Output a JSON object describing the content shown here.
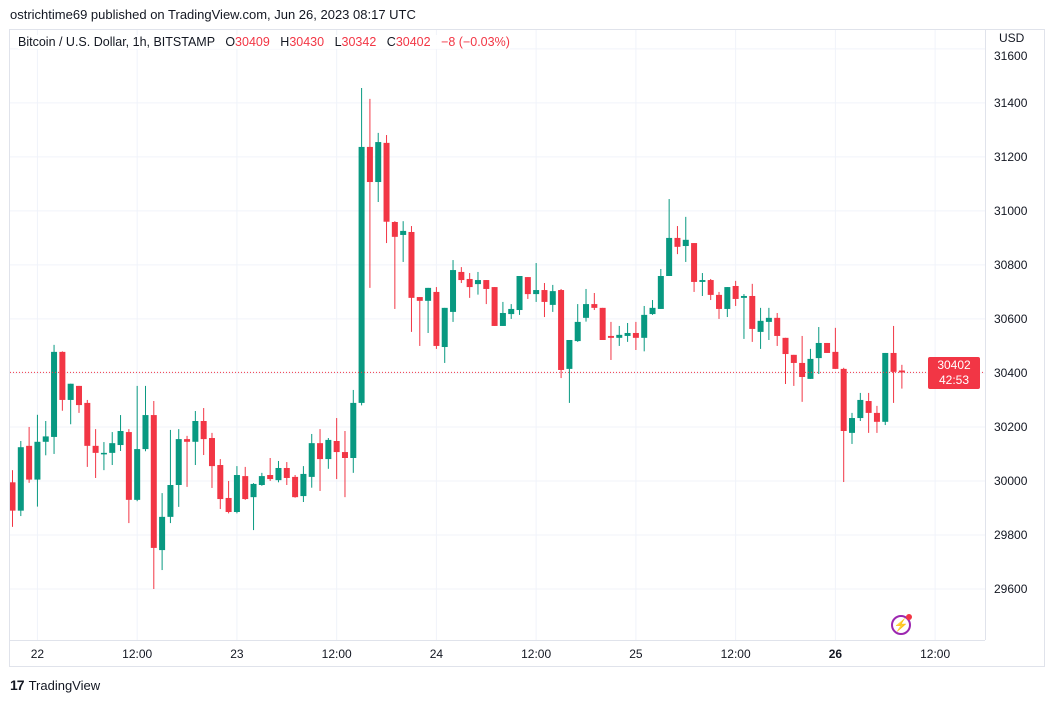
{
  "publisher_line": "ostrichtime69 published on TradingView.com, Jun 26, 2023 08:17 UTC",
  "legend": {
    "symbol": "Bitcoin / U.S. Dollar, 1h, BITSTAMP",
    "o_label": "O",
    "o": "30409",
    "h_label": "H",
    "h": "30430",
    "l_label": "L",
    "l": "30342",
    "c_label": "C",
    "c": "30402",
    "change": "−8 (−0.03%)"
  },
  "currency": "USD",
  "last_price": {
    "price": "30402",
    "countdown": "42:53"
  },
  "logo": "TradingView",
  "colors": {
    "up": "#089981",
    "down": "#F23645",
    "grid": "#f0f3fa",
    "accent": "#9c27b0"
  },
  "chart_data": {
    "type": "candlestick",
    "title": "Bitcoin / U.S. Dollar, 1h, BITSTAMP",
    "interval": "1h",
    "ylim": [
      29411,
      31670
    ],
    "yticks": [
      "29600",
      "29800",
      "30000",
      "30200",
      "30400",
      "30600",
      "30800",
      "31000",
      "31200",
      "31400",
      "31600"
    ],
    "xlim": [
      -0.3,
      117
    ],
    "xticks": [
      {
        "index": 3,
        "label": "22",
        "bold": false
      },
      {
        "index": 15,
        "label": "12:00",
        "bold": false
      },
      {
        "index": 27,
        "label": "23",
        "bold": false
      },
      {
        "index": 39,
        "label": "12:00",
        "bold": false
      },
      {
        "index": 51,
        "label": "24",
        "bold": false
      },
      {
        "index": 63,
        "label": "12:00",
        "bold": false
      },
      {
        "index": 75,
        "label": "25",
        "bold": false
      },
      {
        "index": 87,
        "label": "12:00",
        "bold": false
      },
      {
        "index": 99,
        "label": "26",
        "bold": true
      },
      {
        "index": 111,
        "label": "12:00",
        "bold": false
      }
    ],
    "last_price_line": 30402,
    "candles_ohlc": [
      [
        29995,
        30040,
        29830,
        29890
      ],
      [
        29890,
        30148,
        29870,
        30125
      ],
      [
        30130,
        30200,
        29993,
        30005
      ],
      [
        30005,
        30245,
        29905,
        30145
      ],
      [
        30145,
        30222,
        30095,
        30165
      ],
      [
        30163,
        30504,
        30100,
        30478
      ],
      [
        30478,
        30480,
        30260,
        30300
      ],
      [
        30300,
        30360,
        30210,
        30360
      ],
      [
        30352,
        30352,
        30252,
        30281
      ],
      [
        30289,
        30300,
        30052,
        30130
      ],
      [
        30130,
        30192,
        30011,
        30104
      ],
      [
        30104,
        30144,
        30040,
        30104
      ],
      [
        30104,
        30181,
        30059,
        30140
      ],
      [
        30133,
        30244,
        30111,
        30185
      ],
      [
        30181,
        30192,
        29844,
        29930
      ],
      [
        29930,
        30352,
        29925,
        30118
      ],
      [
        30118,
        30352,
        30110,
        30244
      ],
      [
        30244,
        30296,
        29600,
        29752
      ],
      [
        29744,
        29955,
        29670,
        29867
      ],
      [
        29867,
        30189,
        29844,
        29985
      ],
      [
        29985,
        30192,
        29904,
        30155
      ],
      [
        30155,
        30167,
        29978,
        30145
      ],
      [
        30145,
        30259,
        30059,
        30222
      ],
      [
        30222,
        30270,
        30096,
        30155
      ],
      [
        30159,
        30178,
        29974,
        30055
      ],
      [
        30059,
        30081,
        29896,
        29933
      ],
      [
        29937,
        30000,
        29880,
        29885
      ],
      [
        29885,
        30055,
        29880,
        30022
      ],
      [
        30018,
        30052,
        29930,
        29933
      ],
      [
        29940,
        29992,
        29818,
        29989
      ],
      [
        29985,
        30030,
        29982,
        30018
      ],
      [
        30022,
        30085,
        30000,
        30007
      ],
      [
        30003,
        30074,
        29995,
        30048
      ],
      [
        30048,
        30070,
        29985,
        30011
      ],
      [
        30015,
        30022,
        29938,
        29940
      ],
      [
        29944,
        30055,
        29922,
        30026
      ],
      [
        30015,
        30174,
        29975,
        30140
      ],
      [
        30140,
        30192,
        29963,
        30081
      ],
      [
        30081,
        30159,
        30045,
        30152
      ],
      [
        30148,
        30233,
        30007,
        30107
      ],
      [
        30107,
        30185,
        29940,
        30085
      ],
      [
        30085,
        30337,
        30030,
        30289
      ],
      [
        30289,
        31455,
        30280,
        31237
      ],
      [
        31237,
        31415,
        30715,
        31107
      ],
      [
        31107,
        31289,
        31033,
        31255
      ],
      [
        31252,
        31281,
        30881,
        30960
      ],
      [
        30959,
        30962,
        30637,
        30904
      ],
      [
        30911,
        30962,
        30811,
        30926
      ],
      [
        30922,
        30944,
        30552,
        30678
      ],
      [
        30681,
        30681,
        30500,
        30667
      ],
      [
        30667,
        30715,
        30548,
        30715
      ],
      [
        30700,
        30718,
        30489,
        30500
      ],
      [
        30496,
        30641,
        30437,
        30641
      ],
      [
        30626,
        30818,
        30589,
        30781
      ],
      [
        30774,
        30792,
        30733,
        30744
      ],
      [
        30748,
        30770,
        30678,
        30718
      ],
      [
        30729,
        30774,
        30690,
        30744
      ],
      [
        30744,
        30744,
        30655,
        30711
      ],
      [
        30718,
        30718,
        30574,
        30574
      ],
      [
        30574,
        30663,
        30574,
        30622
      ],
      [
        30618,
        30655,
        30600,
        30637
      ],
      [
        30633,
        30759,
        30615,
        30759
      ],
      [
        30755,
        30755,
        30674,
        30692
      ],
      [
        30692,
        30807,
        30663,
        30707
      ],
      [
        30707,
        30733,
        30607,
        30663
      ],
      [
        30652,
        30726,
        30626,
        30703
      ],
      [
        30707,
        30711,
        30381,
        30411
      ],
      [
        30415,
        30522,
        30289,
        30522
      ],
      [
        30518,
        30655,
        30515,
        30589
      ],
      [
        30604,
        30711,
        30590,
        30655
      ],
      [
        30655,
        30696,
        30633,
        30641
      ],
      [
        30641,
        30641,
        30522,
        30522
      ],
      [
        30537,
        30589,
        30448,
        30530
      ],
      [
        30530,
        30574,
        30500,
        30541
      ],
      [
        30537,
        30585,
        30515,
        30548
      ],
      [
        30548,
        30589,
        30485,
        30530
      ],
      [
        30530,
        30648,
        30480,
        30615
      ],
      [
        30618,
        30670,
        30615,
        30641
      ],
      [
        30637,
        30785,
        30637,
        30759
      ],
      [
        30759,
        31044,
        30759,
        30900
      ],
      [
        30900,
        30944,
        30840,
        30867
      ],
      [
        30870,
        30978,
        30811,
        30893
      ],
      [
        30881,
        30881,
        30700,
        30737
      ],
      [
        30737,
        30770,
        30685,
        30744
      ],
      [
        30744,
        30748,
        30670,
        30689
      ],
      [
        30689,
        30700,
        30600,
        30637
      ],
      [
        30637,
        30718,
        30607,
        30718
      ],
      [
        30722,
        30741,
        30648,
        30674
      ],
      [
        30678,
        30692,
        30526,
        30685
      ],
      [
        30685,
        30730,
        30515,
        30563
      ],
      [
        30552,
        30641,
        30489,
        30593
      ],
      [
        30589,
        30641,
        30522,
        30604
      ],
      [
        30604,
        30622,
        30500,
        30537
      ],
      [
        30530,
        30530,
        30359,
        30470
      ],
      [
        30467,
        30467,
        30352,
        30437
      ],
      [
        30437,
        30537,
        30293,
        30385
      ],
      [
        30378,
        30489,
        30378,
        30452
      ],
      [
        30455,
        30570,
        30396,
        30511
      ],
      [
        30511,
        30511,
        30474,
        30474
      ],
      [
        30478,
        30567,
        30415,
        30415
      ],
      [
        30415,
        30419,
        29996,
        30185
      ],
      [
        30178,
        30252,
        30137,
        30233
      ],
      [
        30233,
        30326,
        30222,
        30300
      ],
      [
        30296,
        30326,
        30178,
        30252
      ],
      [
        30252,
        30278,
        30178,
        30219
      ],
      [
        30219,
        30474,
        30207,
        30474
      ],
      [
        30474,
        30574,
        30289,
        30404
      ],
      [
        30409,
        30430,
        30342,
        30402
      ]
    ]
  }
}
